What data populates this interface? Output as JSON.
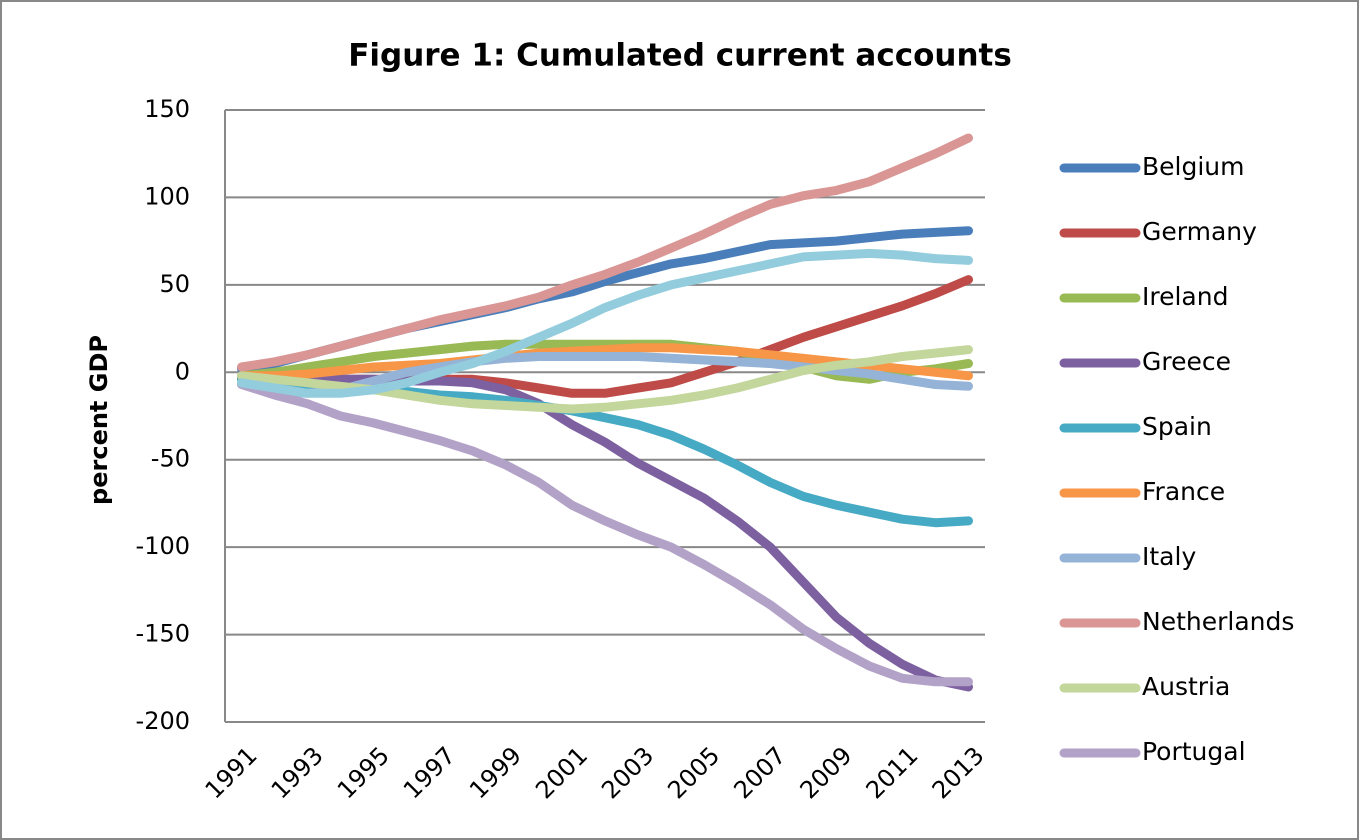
{
  "chart_data": {
    "type": "line",
    "title": "Figure 1: Cumulated current accounts",
    "y_label": "percent GDP",
    "categories": [
      "1991",
      null,
      "1993",
      null,
      "1995",
      null,
      "1997",
      null,
      "1999",
      null,
      "2001",
      null,
      "2003",
      null,
      "2005",
      null,
      "2007",
      null,
      "2009",
      null,
      "2011",
      null,
      "2013"
    ],
    "ylim": [
      -200,
      150
    ],
    "yticks": [
      -200,
      -150,
      -100,
      -50,
      0,
      50,
      100,
      150
    ],
    "grid": true,
    "series": [
      {
        "name": "Belgium",
        "color": "#4a7ebb",
        "values": [
          2,
          5,
          10,
          15,
          20,
          25,
          29,
          33,
          37,
          42,
          46,
          52,
          57,
          62,
          65,
          69,
          73,
          74,
          75,
          77,
          79,
          80,
          81
        ]
      },
      {
        "name": "Germany",
        "color": "#be4b48",
        "values": [
          -3,
          -4,
          -4,
          -4,
          -4,
          -4,
          -4,
          -4,
          -6,
          -9,
          -12,
          -12,
          -9,
          -6,
          0,
          6,
          13,
          20,
          26,
          32,
          38,
          45,
          53
        ]
      },
      {
        "name": "Ireland",
        "color": "#98b954",
        "values": [
          -2,
          0,
          3,
          6,
          9,
          11,
          13,
          15,
          16,
          16,
          16,
          16,
          16,
          16,
          14,
          12,
          8,
          3,
          -2,
          -4,
          0,
          2,
          5
        ]
      },
      {
        "name": "Greece",
        "color": "#7d60a0",
        "values": [
          -4,
          -4,
          -4,
          -4,
          -4,
          -5,
          -5,
          -6,
          -10,
          -18,
          -30,
          -40,
          -52,
          -62,
          -72,
          -85,
          -100,
          -120,
          -140,
          -155,
          -167,
          -176,
          -180
        ]
      },
      {
        "name": "Spain",
        "color": "#46aac5",
        "values": [
          -4,
          -6,
          -8,
          -9,
          -10,
          -11,
          -13,
          -14,
          -16,
          -19,
          -22,
          -26,
          -30,
          -36,
          -44,
          -53,
          -63,
          -71,
          -76,
          -80,
          -84,
          -86,
          -85
        ]
      },
      {
        "name": "France",
        "color": "#f79646",
        "values": [
          -2,
          -2,
          -1,
          1,
          3,
          4,
          5,
          7,
          9,
          11,
          12,
          13,
          14,
          14,
          13,
          12,
          10,
          8,
          6,
          4,
          2,
          0,
          -2
        ]
      },
      {
        "name": "Italy",
        "color": "#95b3d7",
        "values": [
          -6,
          -11,
          -12,
          -10,
          -5,
          0,
          3,
          6,
          8,
          9,
          9,
          9,
          9,
          8,
          7,
          6,
          5,
          3,
          1,
          -1,
          -4,
          -7,
          -8
        ]
      },
      {
        "name": "Netherlands",
        "color": "#d99694",
        "values": [
          3,
          6,
          10,
          15,
          20,
          25,
          30,
          34,
          38,
          43,
          50,
          56,
          63,
          71,
          79,
          88,
          96,
          101,
          104,
          109,
          117,
          125,
          134
        ]
      },
      {
        "name": "Austria",
        "color": "#c3d69b",
        "values": [
          -2,
          -4,
          -6,
          -8,
          -10,
          -13,
          -16,
          -18,
          -19,
          -20,
          -21,
          -20,
          -18,
          -16,
          -13,
          -9,
          -4,
          1,
          4,
          6,
          9,
          11,
          13
        ]
      },
      {
        "name": "Portugal",
        "color": "#b3a2c7",
        "values": [
          -7,
          -13,
          -18,
          -25,
          -29,
          -34,
          -39,
          -45,
          -53,
          -63,
          -76,
          -85,
          -93,
          -100,
          -110,
          -121,
          -133,
          -147,
          -158,
          -168,
          -175,
          -177,
          -177
        ]
      },
      {
        "color": "#93cddd",
        "values": [
          -6,
          -9,
          -12,
          -12,
          -10,
          -6,
          0,
          5,
          12,
          20,
          28,
          37,
          44,
          50,
          54,
          58,
          62,
          66,
          67,
          68,
          67,
          65,
          64
        ]
      }
    ]
  }
}
